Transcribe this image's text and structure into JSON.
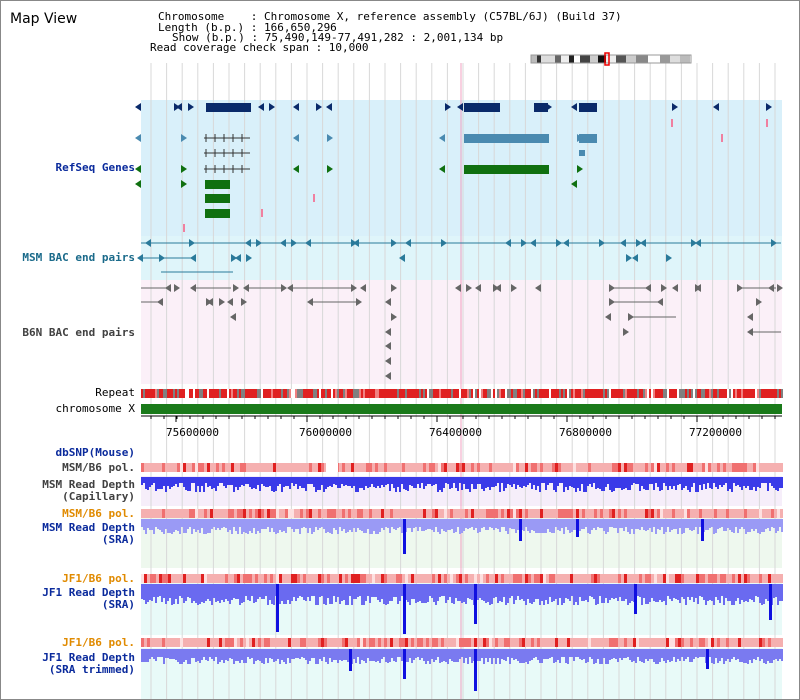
{
  "app": {
    "title": "Map View"
  },
  "header": {
    "chromosome_line": "Chromosome    : Chromosome X, reference assembly (C57BL/6J) (Build 37)",
    "length_line": "Length (b.p.) : 166,650,296",
    "show_line": "Show (b.p.) : 75,490,149-77,491,282 : 2,001,134 bp",
    "coverage_line": "Read coverage check span : 10,000"
  },
  "tracks": {
    "refseq": "RefSeq Genes",
    "msm_bac": "MSM BAC end pairs",
    "b6n_bac": "B6N BAC end pairs",
    "repeat": "Repeat",
    "chromosome": "chromosome X",
    "dbsnp": "dbSNP(Mouse)",
    "msm_b6_pol_1": "MSM/B6 pol.",
    "msm_depth_cap": "MSM Read Depth\n(Capillary)",
    "msm_b6_pol_2": "MSM/B6 pol.",
    "msm_depth_sra": "MSM Read Depth\n(SRA)",
    "jf1_b6_pol_1": "JF1/B6 pol.",
    "jf1_depth_sra": "JF1 Read Depth\n(SRA)",
    "jf1_b6_pol_2": "JF1/B6 pol.",
    "jf1_depth_trim": "JF1 Read Depth\n(SRA trimmed)"
  },
  "axis": {
    "ticks": [
      "75600000",
      "76000000",
      "76400000",
      "76800000",
      "77200000"
    ]
  },
  "colors": {
    "refseq_bg": "#d9f0fa",
    "msm_bac_bg": "#dff5fa",
    "b6n_bac_bg": "#fbf0f8",
    "depth_bg": "#eef8ee",
    "pol_light": "#f5b0b0",
    "pol_dark": "#e02020",
    "depth_blue": "#4040f0",
    "gene_dark": "#0a2a6a",
    "gene_mid": "#4a8ab0",
    "gene_green": "#107010",
    "repeat_red": "#e02020",
    "chrom_green": "#1a7a1a"
  }
}
